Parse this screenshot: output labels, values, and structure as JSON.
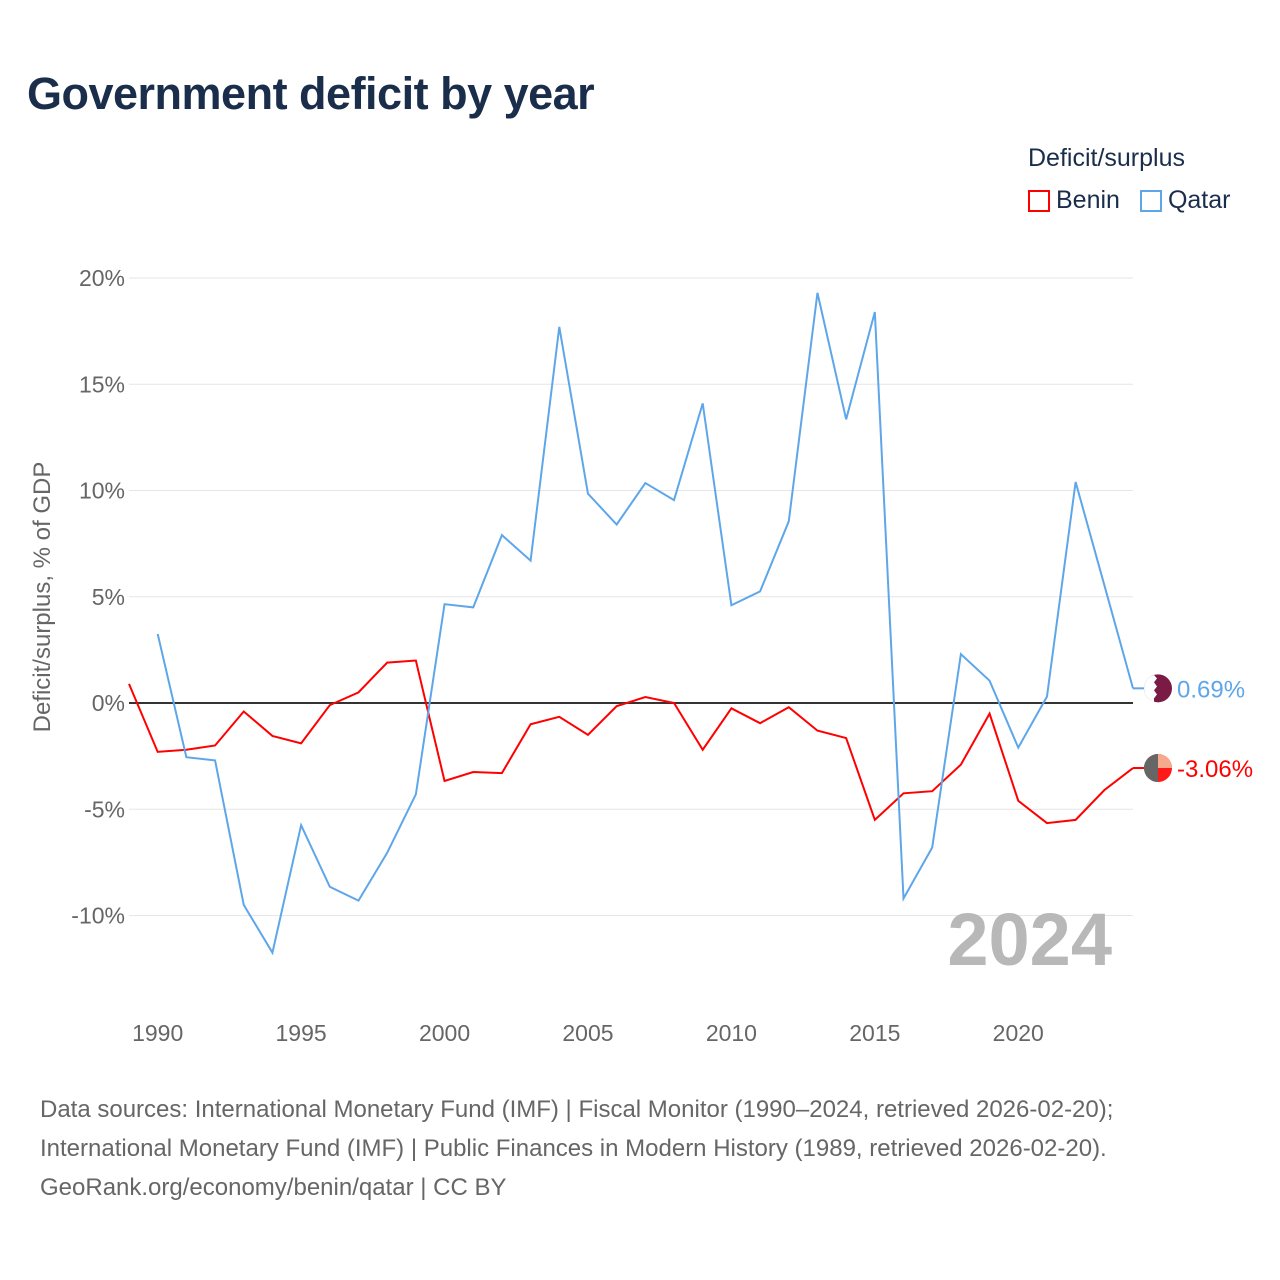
{
  "title": "Government deficit by year",
  "legend": {
    "title": "Deficit/surplus",
    "items": [
      {
        "name": "Benin",
        "color": "#ff0000"
      },
      {
        "name": "Qatar",
        "color": "#5ea6ea"
      }
    ]
  },
  "watermark_year": "2024",
  "footer": [
    "Data sources: International Monetary Fund (IMF) | Fiscal Monitor (1990–2024, retrieved 2026-02-20);",
    "International Monetary Fund (IMF) | Public Finances in Modern History (1989, retrieved 2026-02-20).",
    "GeoRank.org/economy/benin/qatar | CC BY"
  ],
  "chart_data": {
    "type": "line",
    "title": "Government deficit by year",
    "xlabel": "",
    "ylabel": "Deficit/surplus, % of GDP",
    "xlim": [
      1989,
      2024
    ],
    "ylim": [
      -13,
      20
    ],
    "x_ticks": [
      1990,
      1995,
      2000,
      2005,
      2010,
      2015,
      2020
    ],
    "x_tick_labels": [
      "1990",
      "1995",
      "2000",
      "2005",
      "2010",
      "2015",
      "2020"
    ],
    "y_ticks": [
      20,
      15,
      10,
      5,
      0,
      -5,
      -10
    ],
    "y_tick_labels": [
      "20%",
      "15%",
      "10%",
      "5%",
      "0%",
      "-5%",
      "-10%"
    ],
    "grid": true,
    "legend_position": "top-right",
    "series": [
      {
        "name": "Benin",
        "color": "#ff0000",
        "end_label": "-3.06%",
        "x": [
          1989,
          1990,
          1991,
          1992,
          1993,
          1994,
          1995,
          1996,
          1997,
          1998,
          1999,
          2000,
          2001,
          2002,
          2003,
          2004,
          2005,
          2006,
          2007,
          2008,
          2009,
          2010,
          2011,
          2012,
          2013,
          2014,
          2015,
          2016,
          2017,
          2018,
          2019,
          2020,
          2021,
          2022,
          2023,
          2024
        ],
        "values": [
          0.9,
          -2.3,
          -2.2,
          -2.0,
          -0.4,
          -1.55,
          -1.9,
          -0.1,
          0.5,
          1.9,
          2.0,
          -3.67,
          -3.25,
          -3.3,
          -1.0,
          -0.65,
          -1.5,
          -0.15,
          0.28,
          0.0,
          -2.2,
          -0.25,
          -0.95,
          -0.2,
          -1.3,
          -1.65,
          -5.5,
          -4.25,
          -4.15,
          -2.9,
          -0.5,
          -4.6,
          -5.65,
          -5.5,
          -4.1,
          -3.06
        ]
      },
      {
        "name": "Qatar",
        "color": "#5ea6ea",
        "end_label": "0.69%",
        "x": [
          1990,
          1991,
          1992,
          1993,
          1994,
          1995,
          1996,
          1997,
          1998,
          1999,
          2000,
          2001,
          2002,
          2003,
          2004,
          2005,
          2006,
          2007,
          2008,
          2009,
          2010,
          2011,
          2012,
          2013,
          2014,
          2015,
          2016,
          2017,
          2018,
          2019,
          2020,
          2021,
          2022,
          2023,
          2024
        ],
        "values": [
          3.25,
          -2.55,
          -2.7,
          -9.5,
          -11.75,
          -5.75,
          -8.65,
          -9.3,
          -7.05,
          -4.3,
          4.65,
          4.5,
          7.9,
          6.7,
          17.7,
          9.85,
          8.4,
          10.35,
          9.55,
          14.1,
          4.6,
          5.25,
          8.55,
          19.3,
          13.35,
          18.4,
          -9.2,
          -6.8,
          2.3,
          1.05,
          -2.1,
          0.3,
          10.4,
          5.55,
          0.69
        ]
      }
    ]
  }
}
